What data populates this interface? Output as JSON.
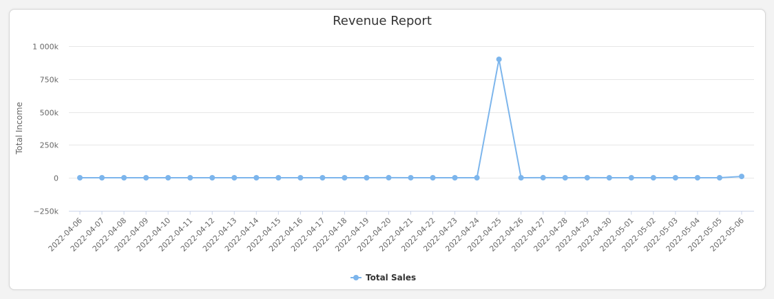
{
  "chart_data": {
    "type": "line",
    "title": "Revenue Report",
    "xlabel": "",
    "ylabel": "Total Income",
    "ylim": [
      -250000,
      1000000
    ],
    "yticks": [
      -250000,
      0,
      250000,
      500000,
      750000,
      1000000
    ],
    "ytick_labels": [
      "−250k",
      "0",
      "250k",
      "500k",
      "750k",
      "1 000k"
    ],
    "grid": true,
    "legend_position": "bottom-center",
    "categories": [
      "2022-04-06",
      "2022-04-07",
      "2022-04-08",
      "2022-04-09",
      "2022-04-10",
      "2022-04-11",
      "2022-04-12",
      "2022-04-13",
      "2022-04-14",
      "2022-04-15",
      "2022-04-16",
      "2022-04-17",
      "2022-04-18",
      "2022-04-19",
      "2022-04-20",
      "2022-04-21",
      "2022-04-22",
      "2022-04-23",
      "2022-04-24",
      "2022-04-25",
      "2022-04-26",
      "2022-04-27",
      "2022-04-28",
      "2022-04-29",
      "2022-04-30",
      "2022-05-01",
      "2022-05-02",
      "2022-05-03",
      "2022-05-04",
      "2022-05-05",
      "2022-05-06"
    ],
    "series": [
      {
        "name": "Total Sales",
        "color": "#7cb5ec",
        "values": [
          0,
          0,
          0,
          0,
          0,
          0,
          0,
          0,
          0,
          0,
          0,
          0,
          0,
          0,
          500,
          200,
          0,
          0,
          0,
          900000,
          0,
          500,
          0,
          300,
          0,
          0,
          0,
          0,
          0,
          0,
          10000
        ]
      }
    ]
  }
}
